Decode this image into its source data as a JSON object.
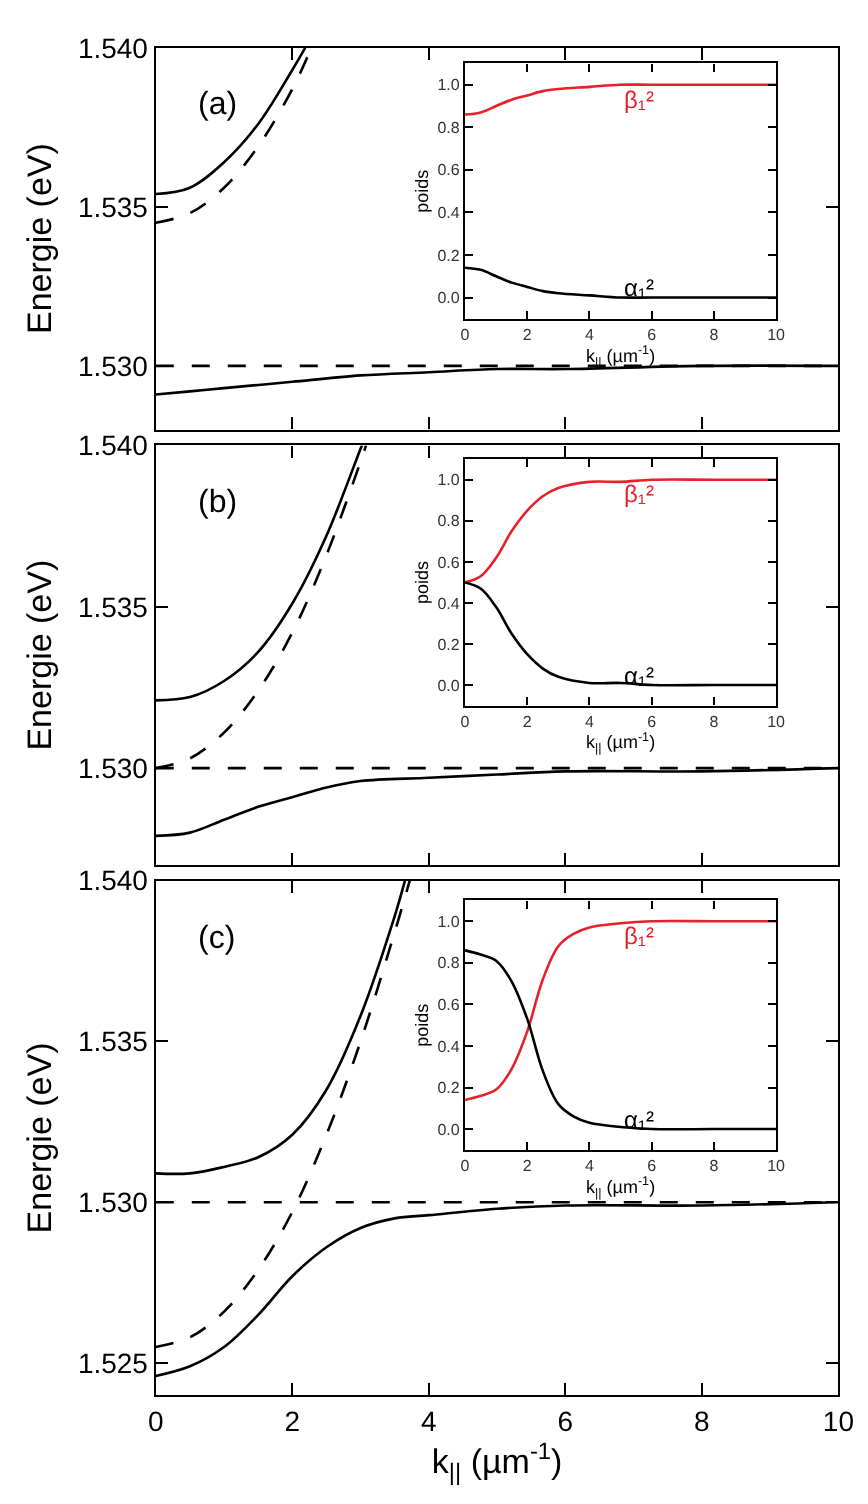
{
  "chart_data": [
    {
      "type": "line",
      "ylabel": "Energie (eV)",
      "annotations": [
        "(a)"
      ],
      "xlim": [
        0,
        10
      ],
      "xticks": [
        0,
        2,
        4,
        6,
        8,
        10
      ],
      "ylim": [
        1.528,
        1.54
      ],
      "yticks": [
        {
          "value": 1.53,
          "label": "1.530"
        },
        {
          "value": 1.535,
          "label": "1.535"
        },
        {
          "value": 1.54,
          "label": "1.540"
        }
      ],
      "tick_labels": "y",
      "series": [
        {
          "color": "#000000",
          "line_style": "dashed",
          "x": [
            0,
            10
          ],
          "values": [
            1.53,
            1.53
          ]
        },
        {
          "color": "#000000",
          "line_style": "dashed",
          "x": [
            0,
            0.5,
            1,
            1.5,
            2,
            2.28
          ],
          "values": [
            1.5345,
            1.5348,
            1.5356,
            1.5369,
            1.5387,
            1.54
          ]
        },
        {
          "color": "#000000",
          "line_style": "solid",
          "x": [
            0,
            0.5,
            1,
            1.5,
            2,
            2.19
          ],
          "values": [
            1.5354,
            1.5356,
            1.5364,
            1.5376,
            1.5393,
            1.54
          ]
        },
        {
          "color": "#000000",
          "line_style": "solid",
          "x": [
            0,
            0.5,
            1,
            1.5,
            2,
            3,
            4,
            5,
            6,
            8,
            10
          ],
          "values": [
            1.5291,
            1.5292,
            1.5293,
            1.5294,
            1.5295,
            1.5297,
            1.5298,
            1.5299,
            1.5299,
            1.53,
            1.53
          ]
        }
      ]
    },
    {
      "type": "line",
      "xlabel": "k$_{||}$ (µm$^{-1}$)",
      "ylabel": "poids",
      "annotations": [
        "β₁²",
        "α₁²"
      ],
      "xlim": [
        0,
        10
      ],
      "xticks": [
        0,
        2,
        4,
        6,
        8,
        10
      ],
      "ylim": [
        -0.1,
        1.1
      ],
      "yticks": [
        {
          "value": 0,
          "label": "0.0"
        },
        {
          "value": 0.2,
          "label": "0.2"
        },
        {
          "value": 0.4,
          "label": "0.4"
        },
        {
          "value": 0.6,
          "label": "0.6"
        },
        {
          "value": 0.8,
          "label": "0.8"
        },
        {
          "value": 1,
          "label": "1.0"
        }
      ],
      "series": [
        {
          "color": "#e8202a",
          "x": [
            0,
            0.5,
            1,
            1.5,
            2,
            2.5,
            3,
            4,
            5,
            6,
            8,
            10
          ],
          "values": [
            0.86,
            0.87,
            0.9,
            0.93,
            0.95,
            0.97,
            0.98,
            0.99,
            1.0,
            1.0,
            1.0,
            1.0
          ]
        },
        {
          "color": "#000000",
          "x": [
            0,
            0.5,
            1,
            1.5,
            2,
            2.5,
            3,
            4,
            5,
            6,
            8,
            10
          ],
          "values": [
            0.14,
            0.13,
            0.1,
            0.07,
            0.05,
            0.03,
            0.02,
            0.01,
            0,
            0,
            0,
            0
          ]
        }
      ]
    },
    {
      "type": "line",
      "ylabel": "Energie (eV)",
      "annotations": [
        "(b)"
      ],
      "xlim": [
        0,
        10
      ],
      "xticks": [
        0,
        2,
        4,
        6,
        8,
        10
      ],
      "ylim": [
        1.527,
        1.54
      ],
      "yticks": [
        {
          "value": 1.53,
          "label": "1.530"
        },
        {
          "value": 1.535,
          "label": "1.535"
        },
        {
          "value": 1.54,
          "label": "1.540"
        }
      ],
      "tick_labels": "y",
      "series": [
        {
          "color": "#000000",
          "line_style": "dashed",
          "x": [
            0,
            10
          ],
          "values": [
            1.53,
            1.53
          ]
        },
        {
          "color": "#000000",
          "line_style": "dashed",
          "x": [
            0,
            0.5,
            1,
            1.5,
            2,
            2.5,
            3,
            3.08
          ],
          "values": [
            1.53,
            1.5303,
            1.5311,
            1.5324,
            1.5342,
            1.5366,
            1.5395,
            1.54
          ]
        },
        {
          "color": "#000000",
          "line_style": "solid",
          "x": [
            0,
            0.5,
            1,
            1.5,
            2,
            2.5,
            3,
            3.02
          ],
          "values": [
            1.5321,
            1.5322,
            1.5327,
            1.5336,
            1.5351,
            1.5372,
            1.5399,
            1.54
          ]
        },
        {
          "color": "#000000",
          "line_style": "solid",
          "x": [
            0,
            0.5,
            1,
            1.5,
            2,
            2.5,
            3,
            4,
            5,
            6,
            8,
            10
          ],
          "values": [
            1.5279,
            1.528,
            1.5284,
            1.5288,
            1.5291,
            1.5294,
            1.5296,
            1.5297,
            1.5298,
            1.5299,
            1.5299,
            1.53
          ]
        }
      ]
    },
    {
      "type": "line",
      "xlabel": "k$_{||}$ (µm$^{-1}$)",
      "ylabel": "poids",
      "annotations": [
        "β₁²",
        "α₁²"
      ],
      "xlim": [
        0,
        10
      ],
      "xticks": [
        0,
        2,
        4,
        6,
        8,
        10
      ],
      "ylim": [
        -0.1,
        1.1
      ],
      "yticks": [
        {
          "value": 0,
          "label": "0.0"
        },
        {
          "value": 0.2,
          "label": "0.2"
        },
        {
          "value": 0.4,
          "label": "0.4"
        },
        {
          "value": 0.6,
          "label": "0.6"
        },
        {
          "value": 0.8,
          "label": "0.8"
        },
        {
          "value": 1,
          "label": "1.0"
        }
      ],
      "series": [
        {
          "color": "#e8202a",
          "x": [
            0,
            0.5,
            1,
            1.5,
            2,
            2.5,
            3,
            4,
            5,
            6,
            8,
            10
          ],
          "values": [
            0.5,
            0.53,
            0.62,
            0.75,
            0.85,
            0.92,
            0.96,
            0.99,
            0.99,
            1.0,
            1.0,
            1.0
          ]
        },
        {
          "color": "#000000",
          "x": [
            0,
            0.5,
            1,
            1.5,
            2,
            2.5,
            3,
            4,
            5,
            6,
            8,
            10
          ],
          "values": [
            0.5,
            0.47,
            0.38,
            0.25,
            0.15,
            0.08,
            0.04,
            0.01,
            0.01,
            0,
            0,
            0
          ]
        }
      ]
    },
    {
      "type": "line",
      "xlabel": "k$_{||}$ (µm$^{-1}$)",
      "ylabel": "Energie (eV)",
      "annotations": [
        "(c)"
      ],
      "xlim": [
        0,
        10
      ],
      "xticks": [
        0,
        2,
        4,
        6,
        8,
        10
      ],
      "ylim": [
        1.524,
        1.54
      ],
      "yticks": [
        {
          "value": 1.525,
          "label": "1.525"
        },
        {
          "value": 1.53,
          "label": "1.530"
        },
        {
          "value": 1.535,
          "label": "1.535"
        },
        {
          "value": 1.54,
          "label": "1.540"
        }
      ],
      "series": [
        {
          "color": "#000000",
          "line_style": "dashed",
          "x": [
            0,
            10
          ],
          "values": [
            1.53,
            1.53
          ]
        },
        {
          "color": "#000000",
          "line_style": "dashed",
          "x": [
            0,
            0.5,
            1,
            1.5,
            2,
            2.5,
            3,
            3.5,
            3.72
          ],
          "values": [
            1.5255,
            1.5258,
            1.5266,
            1.5279,
            1.5297,
            1.5321,
            1.535,
            1.5384,
            1.54
          ]
        },
        {
          "color": "#000000",
          "line_style": "solid",
          "x": [
            0,
            0.5,
            1,
            1.5,
            2,
            2.5,
            3,
            3.5,
            3.65
          ],
          "values": [
            1.5309,
            1.5309,
            1.5311,
            1.5314,
            1.5321,
            1.5335,
            1.5358,
            1.5389,
            1.54
          ]
        },
        {
          "color": "#000000",
          "line_style": "solid",
          "x": [
            0,
            0.5,
            1,
            1.5,
            2,
            2.5,
            3,
            3.5,
            4,
            5,
            6,
            8,
            10
          ],
          "values": [
            1.5246,
            1.5249,
            1.5255,
            1.5265,
            1.5277,
            1.5286,
            1.5292,
            1.5295,
            1.5296,
            1.5298,
            1.5299,
            1.5299,
            1.53
          ]
        }
      ]
    },
    {
      "type": "line",
      "xlabel": "k$_{||}$ (µm$^{-1}$)",
      "ylabel": "poids",
      "annotations": [
        "β₁²",
        "α₁²"
      ],
      "xlim": [
        0,
        10
      ],
      "xticks": [
        0,
        2,
        4,
        6,
        8,
        10
      ],
      "ylim": [
        -0.1,
        1.1
      ],
      "yticks": [
        {
          "value": 0,
          "label": "0.0"
        },
        {
          "value": 0.2,
          "label": "0.2"
        },
        {
          "value": 0.4,
          "label": "0.4"
        },
        {
          "value": 0.6,
          "label": "0.6"
        },
        {
          "value": 0.8,
          "label": "0.8"
        },
        {
          "value": 1,
          "label": "1.0"
        }
      ],
      "series": [
        {
          "color": "#e8202a",
          "x": [
            0,
            0.5,
            1,
            1.5,
            2,
            2.5,
            3,
            3.5,
            4,
            5,
            6,
            8,
            10
          ],
          "values": [
            0.14,
            0.16,
            0.19,
            0.29,
            0.47,
            0.72,
            0.88,
            0.94,
            0.97,
            0.99,
            1.0,
            1.0,
            1.0
          ]
        },
        {
          "color": "#000000",
          "x": [
            0,
            0.5,
            1,
            1.5,
            2,
            2.5,
            3,
            3.5,
            4,
            5,
            6,
            8,
            10
          ],
          "values": [
            0.86,
            0.84,
            0.81,
            0.71,
            0.53,
            0.28,
            0.12,
            0.06,
            0.03,
            0.01,
            0,
            0,
            0
          ]
        }
      ]
    }
  ]
}
